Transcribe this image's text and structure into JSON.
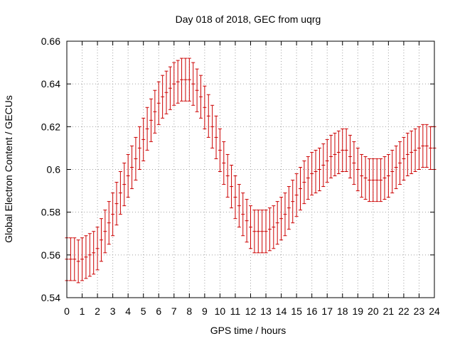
{
  "chart_data": {
    "type": "line",
    "title": "Day 018 of 2018, GEC from uqrg",
    "xlabel": "GPS time / hours",
    "ylabel": "Global Electron Content / GECUs",
    "xlim": [
      0,
      24
    ],
    "ylim": [
      0.54,
      0.66
    ],
    "xticks": [
      "0",
      "1",
      "2",
      "3",
      "4",
      "5",
      "6",
      "7",
      "8",
      "9",
      "10",
      "11",
      "12",
      "13",
      "14",
      "15",
      "16",
      "17",
      "18",
      "19",
      "20",
      "21",
      "22",
      "23",
      "24"
    ],
    "yticks": [
      "0.54",
      "0.56",
      "0.58",
      "0.6",
      "0.62",
      "0.64",
      "0.66"
    ],
    "grid": true,
    "error_half_width": 0.01,
    "series": [
      {
        "color": "#cc0000",
        "style": "errorbars",
        "x": [
          0,
          0.25,
          0.5,
          0.75,
          1,
          1.25,
          1.5,
          1.75,
          2,
          2.25,
          2.5,
          2.75,
          3,
          3.25,
          3.5,
          3.75,
          4,
          4.25,
          4.5,
          4.75,
          5,
          5.25,
          5.5,
          5.75,
          6,
          6.25,
          6.5,
          6.75,
          7,
          7.25,
          7.5,
          7.75,
          8,
          8.25,
          8.5,
          8.75,
          9,
          9.25,
          9.5,
          9.75,
          10,
          10.25,
          10.5,
          10.75,
          11,
          11.25,
          11.5,
          11.75,
          12,
          12.25,
          12.5,
          12.75,
          13,
          13.25,
          13.5,
          13.75,
          14,
          14.25,
          14.5,
          14.75,
          15,
          15.25,
          15.5,
          15.75,
          16,
          16.25,
          16.5,
          16.75,
          17,
          17.25,
          17.5,
          17.75,
          18,
          18.25,
          18.5,
          18.75,
          19,
          19.25,
          19.5,
          19.75,
          20,
          20.25,
          20.5,
          20.75,
          21,
          21.25,
          21.5,
          21.75,
          22,
          22.25,
          22.5,
          22.75,
          23,
          23.25,
          23.5,
          23.75,
          24
        ],
        "y": [
          0.558,
          0.558,
          0.558,
          0.557,
          0.558,
          0.559,
          0.56,
          0.561,
          0.563,
          0.567,
          0.571,
          0.575,
          0.579,
          0.584,
          0.589,
          0.593,
          0.597,
          0.601,
          0.605,
          0.61,
          0.614,
          0.619,
          0.623,
          0.627,
          0.631,
          0.634,
          0.636,
          0.638,
          0.64,
          0.641,
          0.642,
          0.642,
          0.642,
          0.64,
          0.637,
          0.634,
          0.629,
          0.625,
          0.62,
          0.615,
          0.609,
          0.603,
          0.597,
          0.592,
          0.587,
          0.583,
          0.579,
          0.576,
          0.573,
          0.571,
          0.571,
          0.571,
          0.571,
          0.572,
          0.573,
          0.575,
          0.577,
          0.579,
          0.582,
          0.585,
          0.588,
          0.591,
          0.594,
          0.596,
          0.598,
          0.599,
          0.6,
          0.602,
          0.604,
          0.606,
          0.607,
          0.608,
          0.609,
          0.609,
          0.606,
          0.603,
          0.6,
          0.597,
          0.596,
          0.595,
          0.595,
          0.595,
          0.595,
          0.596,
          0.597,
          0.599,
          0.601,
          0.603,
          0.605,
          0.607,
          0.608,
          0.609,
          0.61,
          0.611,
          0.611,
          0.61,
          0.61
        ]
      }
    ]
  }
}
